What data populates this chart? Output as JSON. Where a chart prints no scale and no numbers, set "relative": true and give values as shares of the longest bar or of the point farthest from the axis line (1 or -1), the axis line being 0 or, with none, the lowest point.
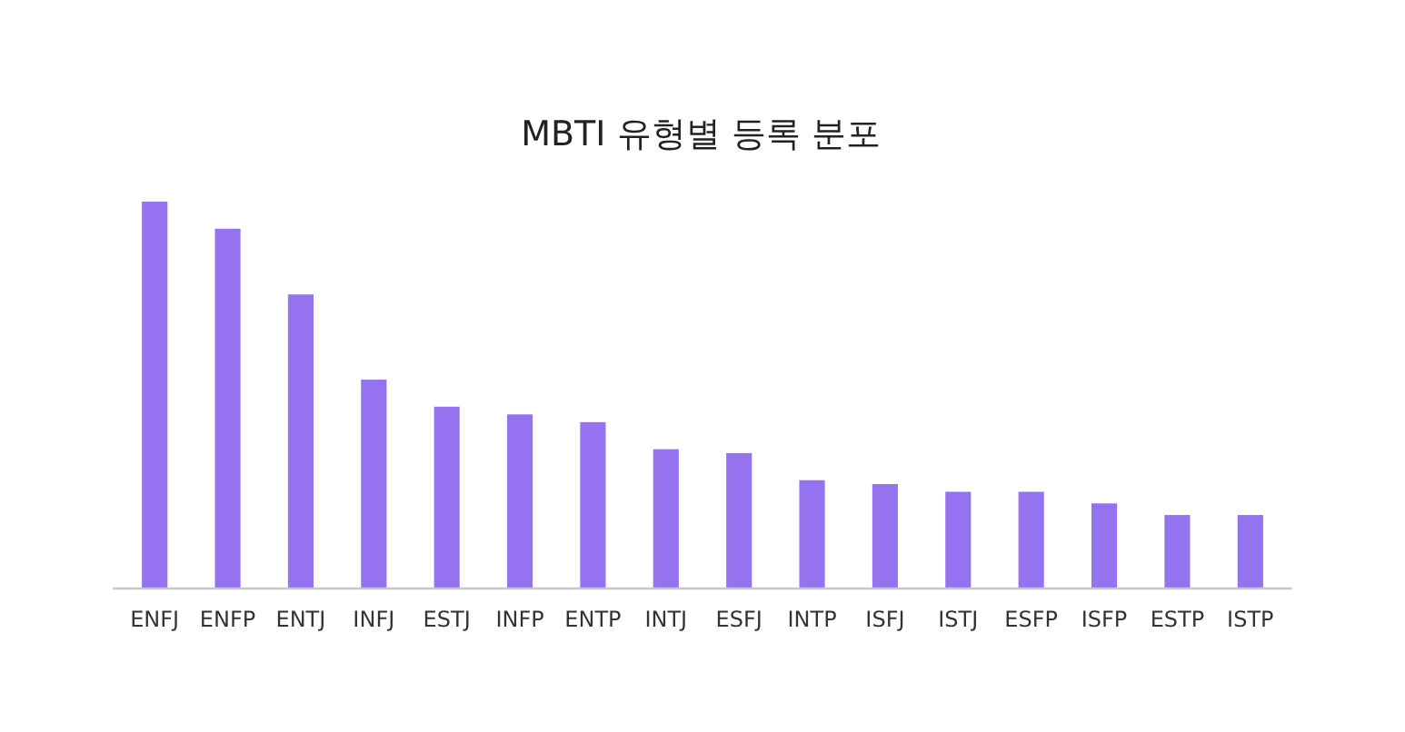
{
  "chart_data": {
    "type": "bar",
    "title": "MBTI 유형별 등록 분포",
    "relative": true,
    "color": "#9572ef",
    "categories": [
      "ENFJ",
      "ENFP",
      "ENTJ",
      "INFJ",
      "ESTJ",
      "INFP",
      "ENTP",
      "INTJ",
      "ESFJ",
      "INTP",
      "ISFJ",
      "ISTJ",
      "ESFP",
      "ISFP",
      "ESTP",
      "ISTP"
    ],
    "values": [
      1,
      0.93,
      0.76,
      0.54,
      0.47,
      0.45,
      0.43,
      0.36,
      0.35,
      0.28,
      0.27,
      0.25,
      0.25,
      0.22,
      0.19,
      0.19
    ]
  }
}
